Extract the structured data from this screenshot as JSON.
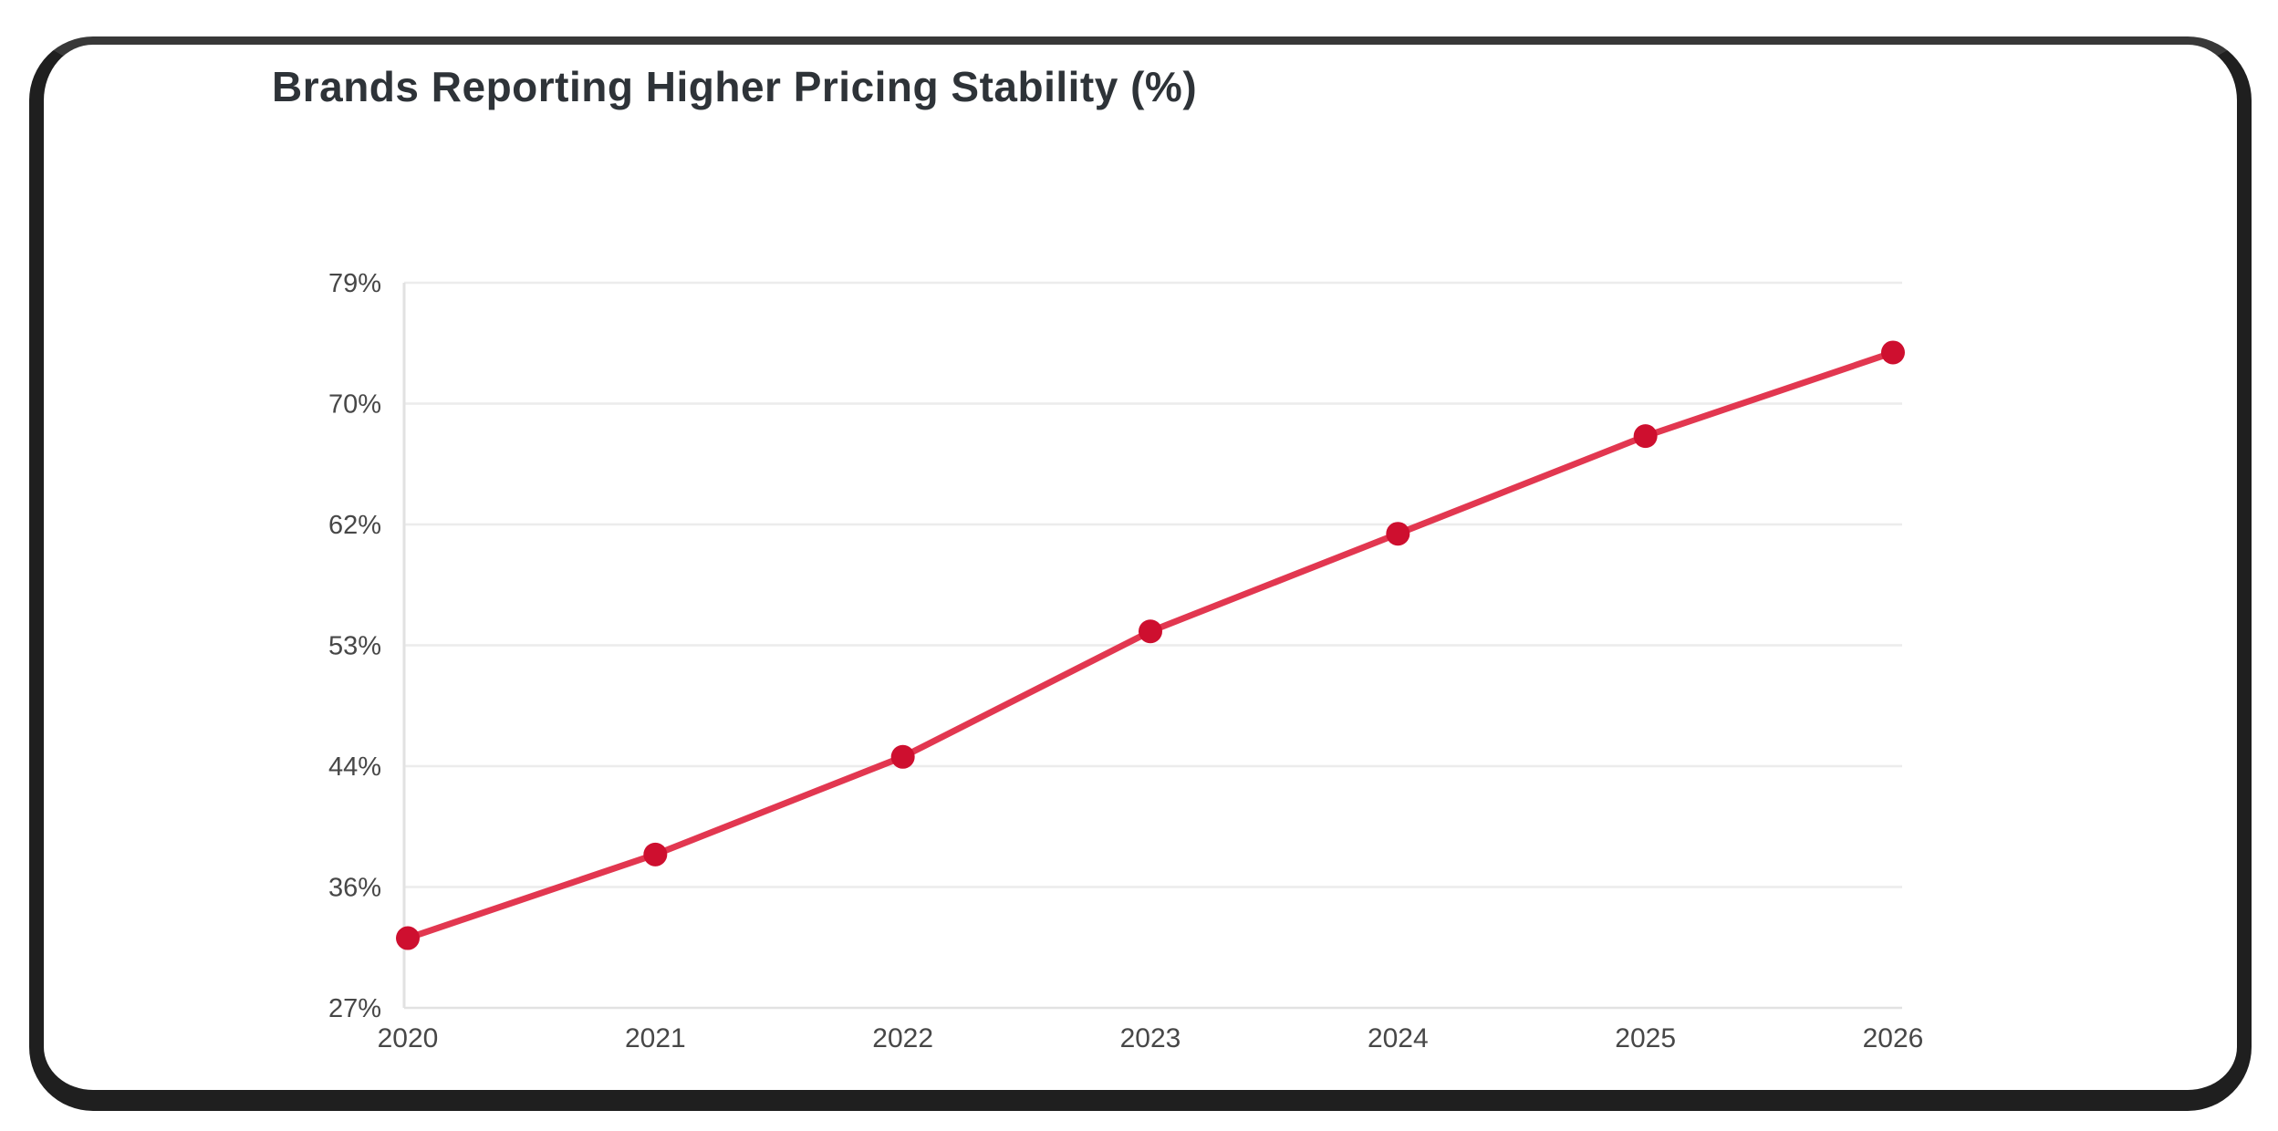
{
  "window": {
    "frame_color": "#1f1f1f",
    "frame_top_color": "#383838",
    "background": "#ffffff"
  },
  "chart_data": {
    "type": "line",
    "title": "Brands Reporting Higher Pricing Stability (%)",
    "categories": [
      "2020",
      "2021",
      "2022",
      "2023",
      "2024",
      "2025",
      "2026"
    ],
    "series": [
      {
        "name": "Brands Reporting Higher Pricing Stability (%)",
        "values": [
          32,
          38,
          45,
          54,
          61,
          68,
          74
        ]
      }
    ],
    "xlabel": "",
    "ylabel": "",
    "ylim": [
      27,
      79
    ],
    "ytick_labels_top_to_bottom": [
      "79%",
      "70%",
      "62%",
      "53%",
      "44%",
      "36%",
      "27%"
    ],
    "grid": "horizontal",
    "legend_position": "none",
    "line_color": "#e23750",
    "point_color": "#ce0f2f",
    "gridline_color": "#ececec",
    "axis_line_color": "#e2e2e2",
    "axis_label_color": "#474747",
    "title_color": "#2e3338"
  }
}
